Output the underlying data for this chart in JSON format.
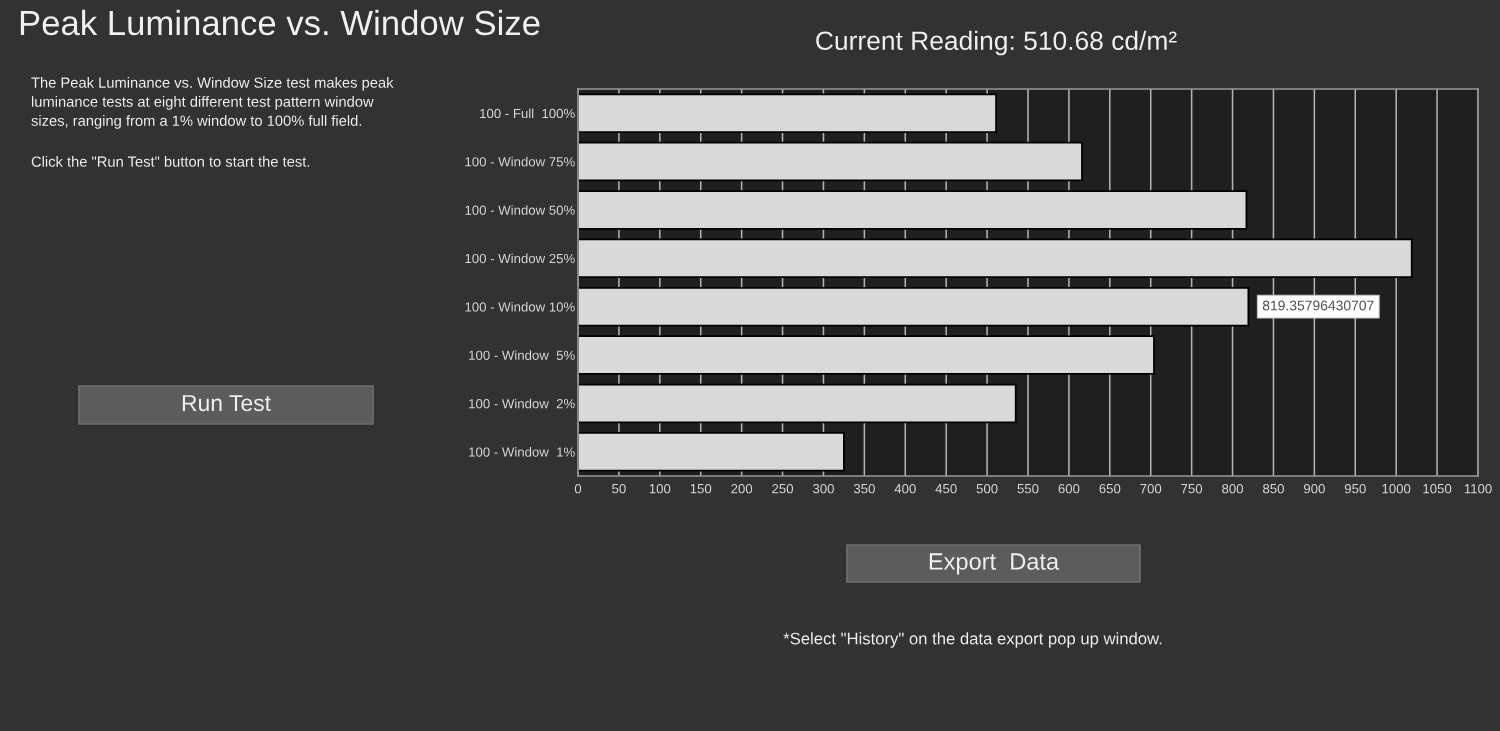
{
  "chart_data": {
    "type": "bar",
    "title": "Peak Luminance vs. Window Size",
    "subtitle": "Current Reading: 510.68 cd/m²",
    "orientation": "horizontal",
    "categories": [
      "100 - Full  100%",
      "100 - Window 75%",
      "100 - Window 50%",
      "100 - Window 25%",
      "100 - Window 10%",
      "100 - Window  5%",
      "100 - Window  2%",
      "100 - Window  1%"
    ],
    "values": [
      511,
      616,
      817,
      1019,
      819.35796430707,
      704,
      535,
      325
    ],
    "color": "#d9d9d9",
    "xlim": [
      0,
      1100
    ],
    "xticks": [
      0,
      50,
      100,
      150,
      200,
      250,
      300,
      350,
      400,
      450,
      500,
      550,
      600,
      650,
      700,
      750,
      800,
      850,
      900,
      950,
      1000,
      1050,
      1100
    ],
    "grid": "x",
    "annotations": [
      "The Peak Luminance vs. Window Size test makes peak\nluminance tests at eight different test pattern window\nsizes, ranging from a 1% window to 100% full field.",
      "Click the \"Run Test\" button to start the test.",
      "Run Test",
      "Export  Data",
      "*Select \"History\" on the data export pop up window.",
      {
        "text": "819.35796430707",
        "x": 819.35796430707,
        "y": "100 - Window 10%"
      }
    ]
  }
}
